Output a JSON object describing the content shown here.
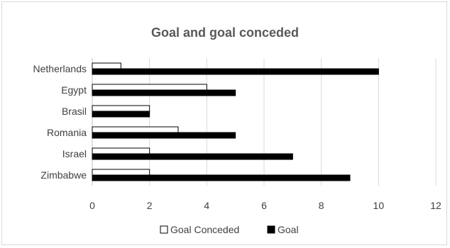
{
  "chart_data": {
    "type": "bar",
    "orientation": "horizontal",
    "title": "Goal and goal conceded",
    "categories": [
      "Netherlands",
      "Egypt",
      "Brasil",
      "Romania",
      "Israel",
      "Zimbabwe"
    ],
    "series": [
      {
        "name": "Goal Conceded",
        "values": [
          1,
          4,
          2,
          3,
          2,
          2
        ],
        "color": "#ffffff",
        "stroke": "#000000"
      },
      {
        "name": "Goal",
        "values": [
          10,
          5,
          2,
          5,
          7,
          9
        ],
        "color": "#000000",
        "stroke": "#000000"
      }
    ],
    "xlim": [
      0,
      12
    ],
    "xticks": [
      "0",
      "2",
      "4",
      "6",
      "8",
      "10",
      "12"
    ],
    "xtick_values": [
      0,
      2,
      4,
      6,
      8,
      10,
      12
    ],
    "grid": "vertical",
    "grid_color": "#d9d9d9",
    "legend": "bottom"
  }
}
